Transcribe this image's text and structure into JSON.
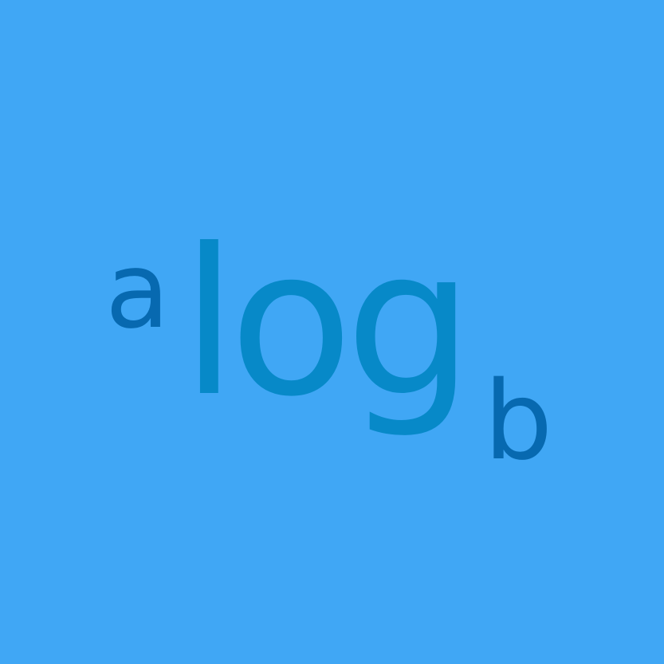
{
  "logo": {
    "prefix": "a",
    "main": "log",
    "suffix": "b"
  },
  "colors": {
    "background": "#40a7f5",
    "main_text": "#0789c8",
    "side_text": "#0769b0"
  }
}
